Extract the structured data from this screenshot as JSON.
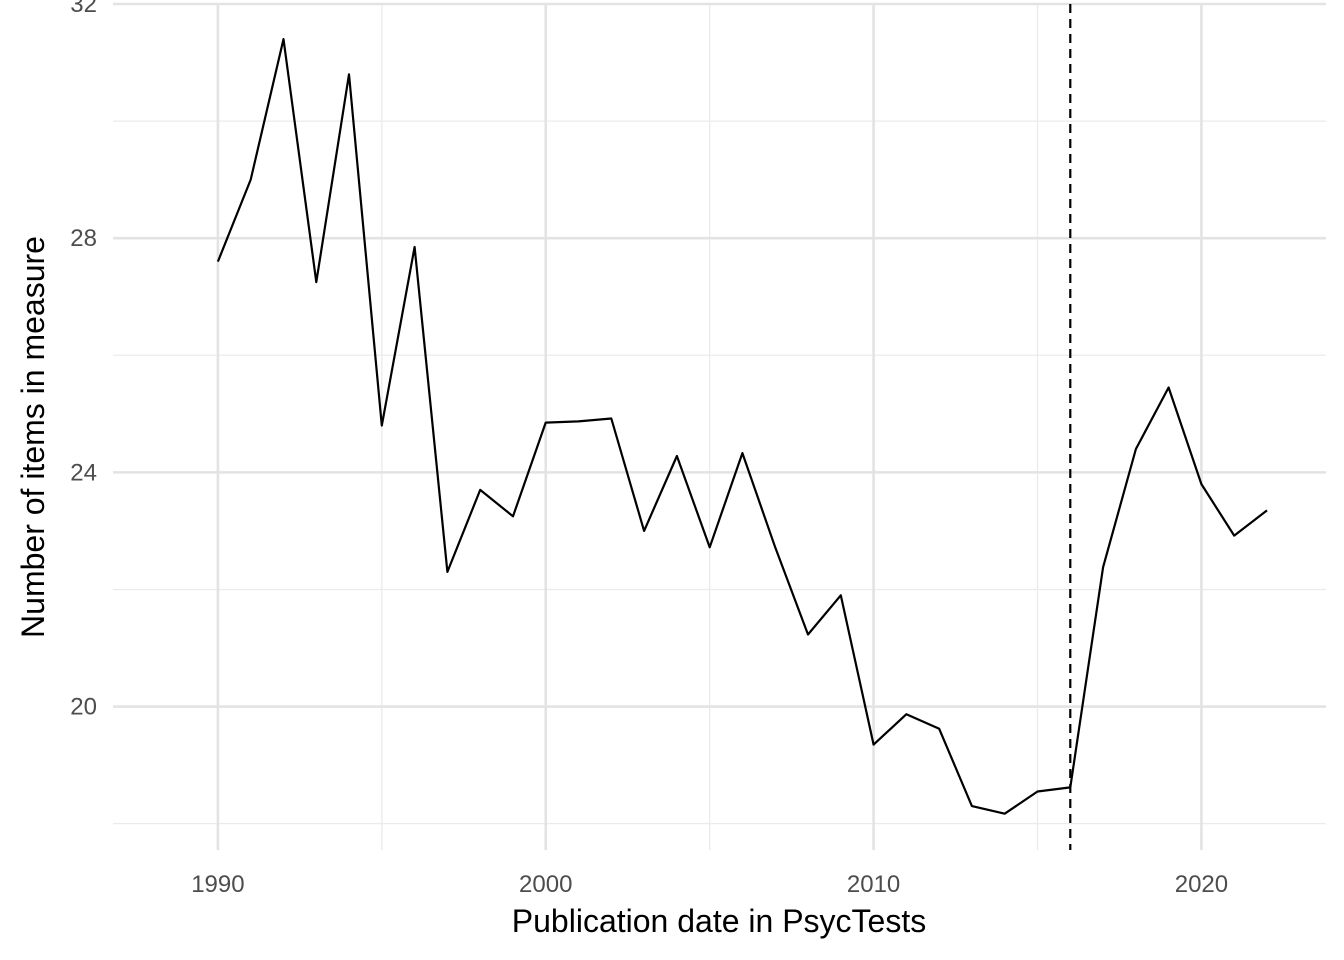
{
  "chart_data": {
    "type": "line",
    "xlabel": "Publication date in PsycTests",
    "ylabel": "Number of items in measure",
    "xlim": [
      1986.8,
      2023.8
    ],
    "ylim": [
      17.55,
      32.0
    ],
    "x_ticks": [
      1990,
      2000,
      2010,
      2020
    ],
    "x_minor_ticks": [
      1995,
      2005,
      2015
    ],
    "y_ticks": [
      20,
      24,
      28,
      32
    ],
    "y_minor_ticks": [
      18,
      22,
      26,
      30
    ],
    "grid": true,
    "legend": "none",
    "vline": {
      "x": 2016,
      "style": "dashed",
      "color": "#000000"
    },
    "series": [
      {
        "color": "#000000",
        "x": [
          1990,
          1991,
          1992,
          1993,
          1994,
          1995,
          1996,
          1997,
          1998,
          1999,
          2000,
          2001,
          2002,
          2003,
          2004,
          2005,
          2006,
          2007,
          2008,
          2009,
          2010,
          2011,
          2012,
          2013,
          2014,
          2015,
          2016,
          2017,
          2018,
          2019,
          2020,
          2021,
          2022
        ],
        "y": [
          27.6,
          29.0,
          31.4,
          27.25,
          30.8,
          24.8,
          27.85,
          22.3,
          23.7,
          23.25,
          24.85,
          24.87,
          24.92,
          23.0,
          24.28,
          22.72,
          24.33,
          22.72,
          21.23,
          21.9,
          19.35,
          19.87,
          19.62,
          18.3,
          18.17,
          18.55,
          18.62,
          22.38,
          24.4,
          25.45,
          23.8,
          22.92,
          23.35
        ]
      }
    ]
  }
}
